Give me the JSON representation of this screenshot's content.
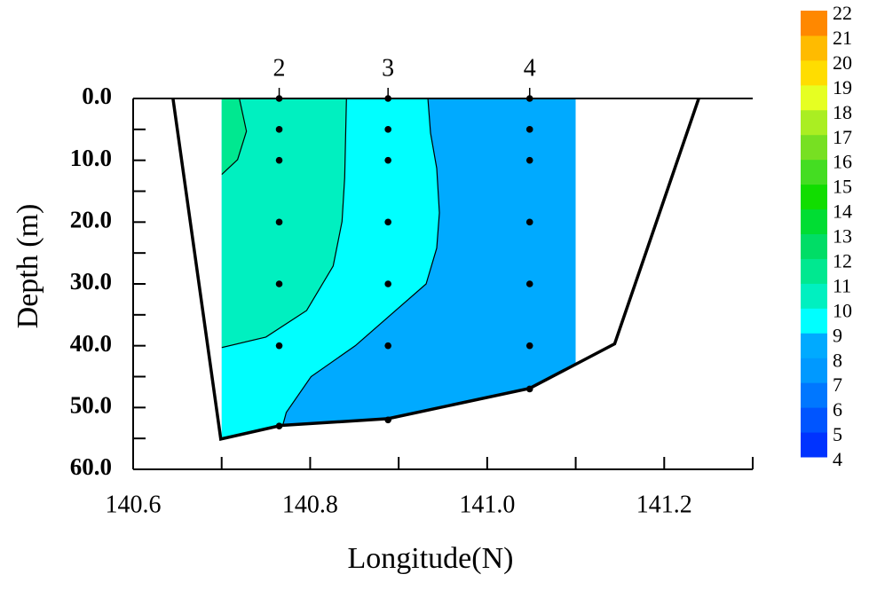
{
  "chart_data": {
    "type": "section-contour",
    "x_label": "Longitude(N)",
    "y_label": "Depth (m)",
    "xlim": [
      140.6,
      141.3
    ],
    "xticks": [
      140.6,
      140.8,
      {
        "value": 141,
        "label": "141.0"
      },
      141.2
    ],
    "xminor": [
      140.7,
      140.9,
      141.1,
      141.3
    ],
    "ylim": [
      0,
      60
    ],
    "y_inverted": true,
    "yticks": [
      {
        "value": 0,
        "label": "0.0"
      },
      {
        "value": 10,
        "label": "10.0"
      },
      {
        "value": 20,
        "label": "20.0"
      },
      {
        "value": 30,
        "label": "30.0"
      },
      {
        "value": 40,
        "label": "40.0"
      },
      {
        "value": 50,
        "label": "50.0"
      },
      {
        "value": 60,
        "label": "60.0"
      }
    ],
    "yminor": [
      5,
      15,
      25,
      35,
      45,
      55
    ],
    "section_xlim": [
      140.7,
      141.1
    ],
    "bottom": {
      "x": [
        140.645,
        140.699,
        140.767,
        140.888,
        141.048,
        141.144,
        141.239
      ],
      "y": [
        0,
        55.1,
        52.9,
        51.8,
        46.9,
        39.7,
        0
      ]
    },
    "base_level": 8,
    "contours": [
      {
        "level": 9,
        "x": [
          140.769,
          140.773,
          140.801,
          140.851,
          140.891,
          140.931,
          140.943,
          140.946,
          140.943,
          140.936,
          140.933
        ],
        "y": [
          52.9,
          50.8,
          45.0,
          40.0,
          35.0,
          30.0,
          24.2,
          18.5,
          11.3,
          5.6,
          0
        ]
      },
      {
        "level": 10,
        "x": [
          140.7,
          140.75,
          140.796,
          140.826,
          140.836,
          140.839,
          140.841
        ],
        "y": [
          40.3,
          38.6,
          34.3,
          27.1,
          19.9,
          12.8,
          0
        ]
      },
      {
        "level": 11,
        "x": [
          140.7,
          140.718,
          140.728,
          140.72
        ],
        "y": [
          12.3,
          9.9,
          5.3,
          0
        ]
      }
    ],
    "stations": [
      {
        "name": "2",
        "x": 140.765,
        "depths": [
          0,
          5,
          10,
          20,
          30,
          40,
          53
        ]
      },
      {
        "name": "3",
        "x": 140.888,
        "depths": [
          0,
          5,
          10,
          20,
          30,
          40,
          52
        ]
      },
      {
        "name": "4",
        "x": 141.048,
        "depths": [
          0,
          5,
          10,
          20,
          30,
          40,
          47
        ]
      }
    ],
    "colorbar": {
      "levels": [
        4,
        5,
        6,
        7,
        8,
        9,
        10,
        11,
        12,
        13,
        14,
        15,
        16,
        17,
        18,
        19,
        20,
        21,
        22
      ],
      "colors": [
        "#0033ff",
        "#0055ff",
        "#0077ff",
        "#0099ff",
        "#00aaff",
        "#00ffff",
        "#00f0c0",
        "#00e890",
        "#00dd66",
        "#00dd33",
        "#11dd00",
        "#44dd22",
        "#77e022",
        "#aaee22",
        "#e6ff22",
        "#ffdd00",
        "#ffbb00",
        "#ff8800"
      ]
    }
  }
}
